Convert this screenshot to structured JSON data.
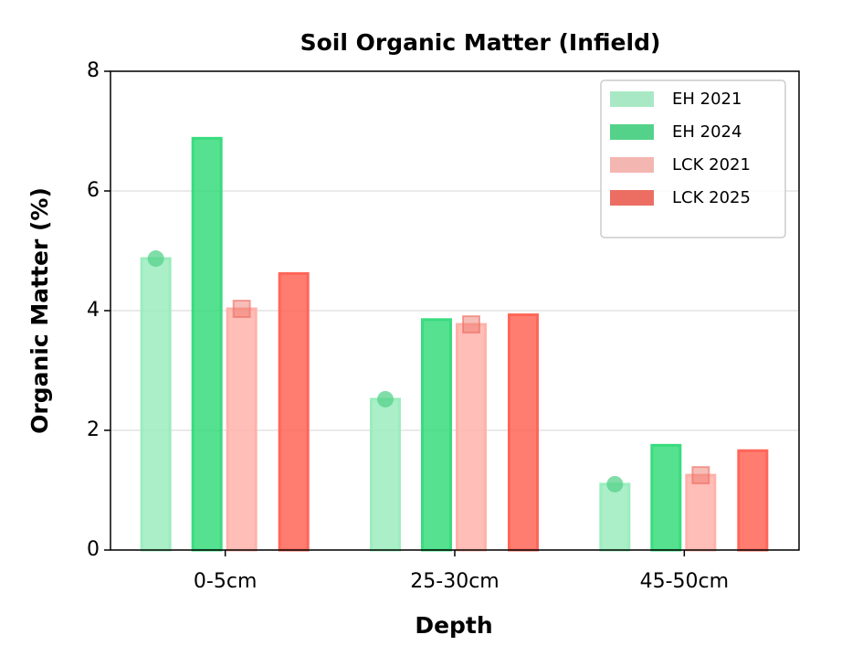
{
  "chart_data": {
    "type": "bar",
    "title": "Soil Organic Matter (Infield)",
    "xlabel": "Depth",
    "ylabel": "Organic Matter (%)",
    "categories": [
      "0-5cm",
      "25-30cm",
      "45-50cm"
    ],
    "series": [
      {
        "name": "EH 2021",
        "color": "#a9e8c4",
        "marker": "circle",
        "values": [
          4.87,
          2.52,
          1.1
        ]
      },
      {
        "name": "EH 2024",
        "color": "#55d28a",
        "values": [
          6.88,
          3.85,
          1.75
        ]
      },
      {
        "name": "LCK 2021",
        "color": "#f4b6b0",
        "marker": "square",
        "values": [
          4.03,
          3.77,
          1.25
        ]
      },
      {
        "name": "LCK 2025",
        "color": "#ec6e63",
        "values": [
          4.62,
          3.93,
          1.66
        ]
      }
    ],
    "ylim": [
      0,
      8
    ],
    "yticks": [
      0,
      2,
      4,
      6,
      8
    ],
    "grid": true,
    "legend": "upper right"
  }
}
